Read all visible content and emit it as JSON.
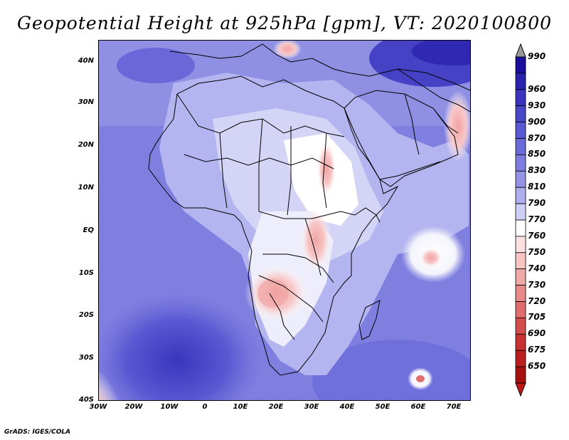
{
  "title": "Geopotential Height at 925hPa [gpm], VT: 2020100800",
  "credit": "GrADS: IGES/COLA",
  "map": {
    "lat_labels": [
      "40N",
      "30N",
      "20N",
      "10N",
      "EQ",
      "10S",
      "20S",
      "30S",
      "40S"
    ],
    "lon_labels": [
      "30W",
      "20W",
      "10W",
      "0",
      "10E",
      "20E",
      "30E",
      "40E",
      "50E",
      "60E",
      "70E"
    ]
  },
  "colorbar": {
    "levels": [
      "990",
      "960",
      "930",
      "900",
      "870",
      "850",
      "830",
      "810",
      "790",
      "770",
      "760",
      "750",
      "740",
      "730",
      "720",
      "705",
      "690",
      "675",
      "650"
    ],
    "colors": [
      "#1c0fa0",
      "#2a22b0",
      "#3a34bf",
      "#4a46c9",
      "#5a58d2",
      "#6a6ad8",
      "#7d7ddf",
      "#9494e6",
      "#aeaeee",
      "#cfcff6",
      "#ffffff",
      "#fde0e0",
      "#f8c4c4",
      "#f1a8a8",
      "#e98a8a",
      "#e06c6c",
      "#d44d4d",
      "#c83232",
      "#bb1e1e",
      "#a81010"
    ],
    "over_color": "#999999",
    "under_color": "#c01818"
  }
}
